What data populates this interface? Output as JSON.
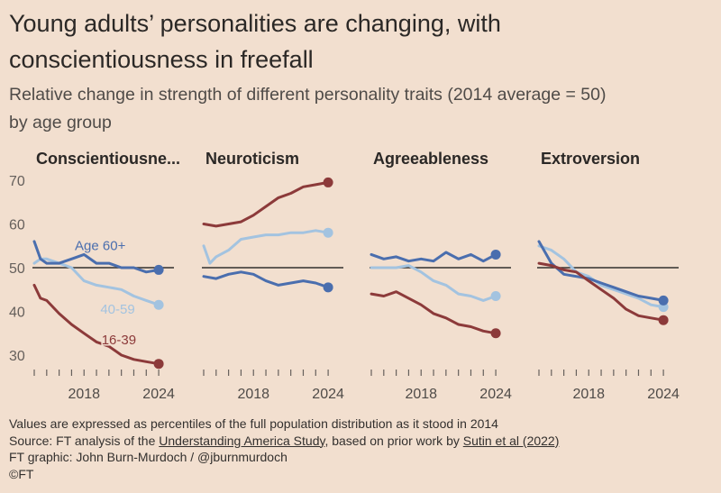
{
  "title_line1": "Young adults’ personalities are changing, with",
  "title_line2": "conscientiousness in freefall",
  "subtitle_line1": "Relative change in strength of different personality traits (2014 average = 50)",
  "subtitle_line2": "by age group",
  "footer": {
    "note": "Values are expressed as percentiles of the full population distribution as it stood in 2014",
    "source_prefix": "Source: FT analysis of the ",
    "source_link1": "Understanding America Study",
    "source_middle": ", based on prior work by ",
    "source_link2": "Sutin et al (2022)",
    "credit": "FT graphic: John Burn-Murdoch / @jburnmurdoch",
    "copyright": "©FT"
  },
  "colors": {
    "age_60_plus": "#4a6eae",
    "age_40_59": "#a3c3e0",
    "age_16_39": "#8c3a3a",
    "baseline": "#33302e",
    "ticks": "#66605c"
  },
  "chart_data": {
    "type": "line",
    "ylim": [
      27,
      72
    ],
    "yticks": [
      30,
      40,
      50,
      60,
      70
    ],
    "xlim": [
      2014,
      2024.5
    ],
    "xtick_labels": [
      2018,
      2024
    ],
    "minor_xticks": [
      2014,
      2015,
      2016,
      2017,
      2018,
      2019,
      2020,
      2021,
      2022,
      2023,
      2024
    ],
    "baseline": 50,
    "panels": [
      {
        "title": "Conscientiousne...",
        "series": [
          {
            "name": "Age 60+",
            "color_key": "age_60_plus",
            "x": [
              2014,
              2014.5,
              2015,
              2016,
              2017,
              2018,
              2019,
              2020,
              2021,
              2022,
              2023,
              2024
            ],
            "y": [
              56,
              52,
              51,
              51,
              52,
              53,
              51,
              51,
              50,
              50,
              49,
              49.5
            ],
            "label": "Age 60+",
            "label_anchor": [
              2019.3,
              54
            ]
          },
          {
            "name": "40-59",
            "color_key": "age_40_59",
            "x": [
              2014,
              2014.5,
              2015,
              2016,
              2017,
              2018,
              2019,
              2020,
              2021,
              2022,
              2023,
              2024
            ],
            "y": [
              51,
              52,
              52,
              51,
              50,
              47,
              46,
              45.5,
              45,
              43.5,
              42.5,
              41.5
            ],
            "label": "40-59",
            "label_anchor": [
              2020.7,
              39.5
            ]
          },
          {
            "name": "16-39",
            "color_key": "age_16_39",
            "x": [
              2014,
              2014.5,
              2015,
              2016,
              2017,
              2018,
              2019,
              2020,
              2021,
              2022,
              2023,
              2024
            ],
            "y": [
              46,
              43,
              42.5,
              39.5,
              37,
              35,
              33,
              32,
              30,
              29,
              28.5,
              28
            ],
            "label": "16-39",
            "label_anchor": [
              2020.8,
              32.5
            ]
          }
        ]
      },
      {
        "title": "Neuroticism",
        "series": [
          {
            "name": "Age 60+",
            "color_key": "age_60_plus",
            "x": [
              2014,
              2015,
              2016,
              2017,
              2018,
              2019,
              2020,
              2021,
              2022,
              2023,
              2024
            ],
            "y": [
              48,
              47.5,
              48.5,
              49,
              48.5,
              47,
              46,
              46.5,
              47,
              46.5,
              45.5
            ]
          },
          {
            "name": "40-59",
            "color_key": "age_40_59",
            "x": [
              2014,
              2014.5,
              2015,
              2016,
              2017,
              2018,
              2019,
              2020,
              2021,
              2022,
              2023,
              2024
            ],
            "y": [
              55,
              51,
              52.5,
              54,
              56.5,
              57,
              57.5,
              57.5,
              58,
              58,
              58.5,
              58
            ]
          },
          {
            "name": "16-39",
            "color_key": "age_16_39",
            "x": [
              2014,
              2015,
              2016,
              2017,
              2018,
              2019,
              2020,
              2021,
              2022,
              2023,
              2024
            ],
            "y": [
              60,
              59.5,
              60,
              60.5,
              62,
              64,
              66,
              67,
              68.5,
              69,
              69.5
            ]
          }
        ]
      },
      {
        "title": "Agreeableness",
        "series": [
          {
            "name": "Age 60+",
            "color_key": "age_60_plus",
            "x": [
              2014,
              2015,
              2016,
              2017,
              2018,
              2019,
              2020,
              2021,
              2022,
              2023,
              2024
            ],
            "y": [
              53,
              52,
              52.5,
              51.5,
              52,
              51.5,
              53.5,
              52,
              53,
              51.5,
              53
            ]
          },
          {
            "name": "40-59",
            "color_key": "age_40_59",
            "x": [
              2014,
              2015,
              2016,
              2017,
              2018,
              2019,
              2020,
              2021,
              2022,
              2023,
              2024
            ],
            "y": [
              50,
              50,
              50,
              50.5,
              49,
              47,
              46,
              44,
              43.5,
              42.5,
              43.5
            ]
          },
          {
            "name": "16-39",
            "color_key": "age_16_39",
            "x": [
              2014,
              2015,
              2016,
              2017,
              2018,
              2019,
              2020,
              2021,
              2022,
              2023,
              2024
            ],
            "y": [
              44,
              43.5,
              44.5,
              43,
              41.5,
              39.5,
              38.5,
              37,
              36.5,
              35.5,
              35
            ]
          }
        ]
      },
      {
        "title": "Extroversion",
        "series": [
          {
            "name": "Age 60+",
            "color_key": "age_60_plus",
            "x": [
              2014,
              2015,
              2016,
              2017,
              2018,
              2019,
              2020,
              2021,
              2022,
              2023,
              2024
            ],
            "y": [
              56,
              51,
              48.5,
              48,
              47.5,
              46.5,
              45.5,
              44.5,
              43.5,
              43,
              42.5
            ]
          },
          {
            "name": "40-59",
            "color_key": "age_40_59",
            "x": [
              2014,
              2015,
              2016,
              2017,
              2018,
              2019,
              2020,
              2021,
              2022,
              2023,
              2024
            ],
            "y": [
              55,
              54,
              52,
              49,
              48,
              46,
              45,
              44,
              43,
              41.5,
              41
            ]
          },
          {
            "name": "16-39",
            "color_key": "age_16_39",
            "x": [
              2014,
              2015,
              2016,
              2017,
              2018,
              2019,
              2020,
              2021,
              2022,
              2023,
              2024
            ],
            "y": [
              51,
              50.5,
              49.5,
              49,
              47,
              45,
              43,
              40.5,
              39,
              38.5,
              38
            ]
          }
        ]
      }
    ]
  }
}
